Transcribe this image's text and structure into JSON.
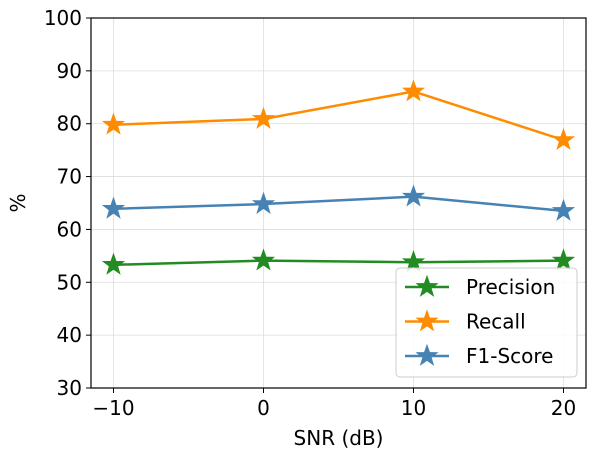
{
  "chart_data": {
    "type": "line",
    "title": "",
    "xlabel": "SNR (dB)",
    "ylabel": "%",
    "x": [
      -10,
      0,
      10,
      20
    ],
    "xticks": [
      -10,
      0,
      10,
      20
    ],
    "xtick_labels": [
      "−10",
      "0",
      "10",
      "20"
    ],
    "xlim": [
      -11.5,
      21.5
    ],
    "ylim": [
      30,
      100
    ],
    "yticks": [
      30,
      40,
      50,
      60,
      70,
      80,
      90,
      100
    ],
    "ytick_labels": [
      "30",
      "40",
      "50",
      "60",
      "70",
      "80",
      "90",
      "100"
    ],
    "grid": true,
    "legend_position": "bottom-right",
    "marker": "star",
    "series": [
      {
        "name": "Precision",
        "values": [
          53.3,
          54.1,
          53.8,
          54.1
        ],
        "color": "#228b22"
      },
      {
        "name": "Recall",
        "values": [
          79.8,
          80.9,
          86.1,
          76.9
        ],
        "color": "#ff8c00"
      },
      {
        "name": "F1-Score",
        "values": [
          63.9,
          64.8,
          66.2,
          63.5
        ],
        "color": "#4682b4"
      }
    ]
  }
}
